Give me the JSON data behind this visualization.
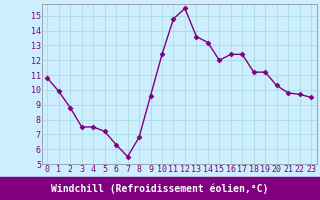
{
  "x": [
    0,
    1,
    2,
    3,
    4,
    5,
    6,
    7,
    8,
    9,
    10,
    11,
    12,
    13,
    14,
    15,
    16,
    17,
    18,
    19,
    20,
    21,
    22,
    23
  ],
  "y": [
    10.8,
    9.9,
    8.8,
    7.5,
    7.5,
    7.2,
    6.3,
    5.5,
    6.8,
    9.6,
    12.4,
    14.8,
    15.5,
    13.6,
    13.2,
    12.0,
    12.4,
    12.4,
    11.2,
    11.2,
    10.3,
    9.8,
    9.7,
    9.5
  ],
  "line_color": "#800080",
  "bg_color": "#cceeff",
  "grid_color": "#aadddd",
  "xlabel": "Windchill (Refroidissement éolien,°C)",
  "xlabel_bg": "#800080",
  "xlabel_fg": "#ffffff",
  "ylim": [
    5,
    15.8
  ],
  "xlim": [
    -0.5,
    23.5
  ],
  "yticks": [
    5,
    6,
    7,
    8,
    9,
    10,
    11,
    12,
    13,
    14,
    15
  ],
  "xticks": [
    0,
    1,
    2,
    3,
    4,
    5,
    6,
    7,
    8,
    9,
    10,
    11,
    12,
    13,
    14,
    15,
    16,
    17,
    18,
    19,
    20,
    21,
    22,
    23
  ],
  "marker": "D",
  "markersize": 2.5,
  "linewidth": 1.0,
  "tick_fontsize": 6.0,
  "xlabel_fontsize": 7.0
}
